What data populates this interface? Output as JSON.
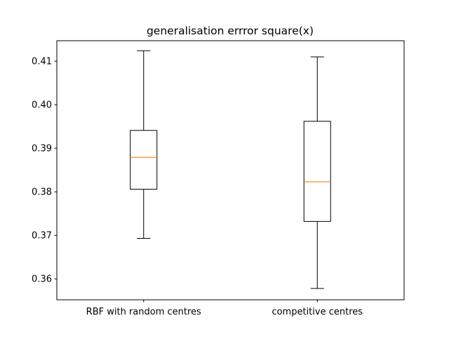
{
  "chart_data": {
    "type": "box",
    "title": "generalisation errror square(x)",
    "xlabel": "",
    "ylabel": "",
    "ylim": [
      0.3552,
      0.4147
    ],
    "yticks": [
      "0.36",
      "0.37",
      "0.38",
      "0.39",
      "0.40",
      "0.41"
    ],
    "yticks_values": [
      0.36,
      0.37,
      0.38,
      0.39,
      0.4,
      0.41
    ],
    "categories": [
      "RBF with random centres",
      "competitive centres"
    ],
    "boxes": [
      {
        "category": "RBF with random centres",
        "whisker_low": 0.3693,
        "q1": 0.3806,
        "median": 0.3879,
        "q3": 0.3941,
        "whisker_high": 0.4124
      },
      {
        "category": "competitive centres",
        "whisker_low": 0.3578,
        "q1": 0.3732,
        "median": 0.3823,
        "q3": 0.3962,
        "whisker_high": 0.411
      }
    ],
    "grid": false,
    "colors": {
      "box": "#000000",
      "median": "#ff7f0e",
      "axes": "#000000",
      "background": "#ffffff"
    }
  }
}
